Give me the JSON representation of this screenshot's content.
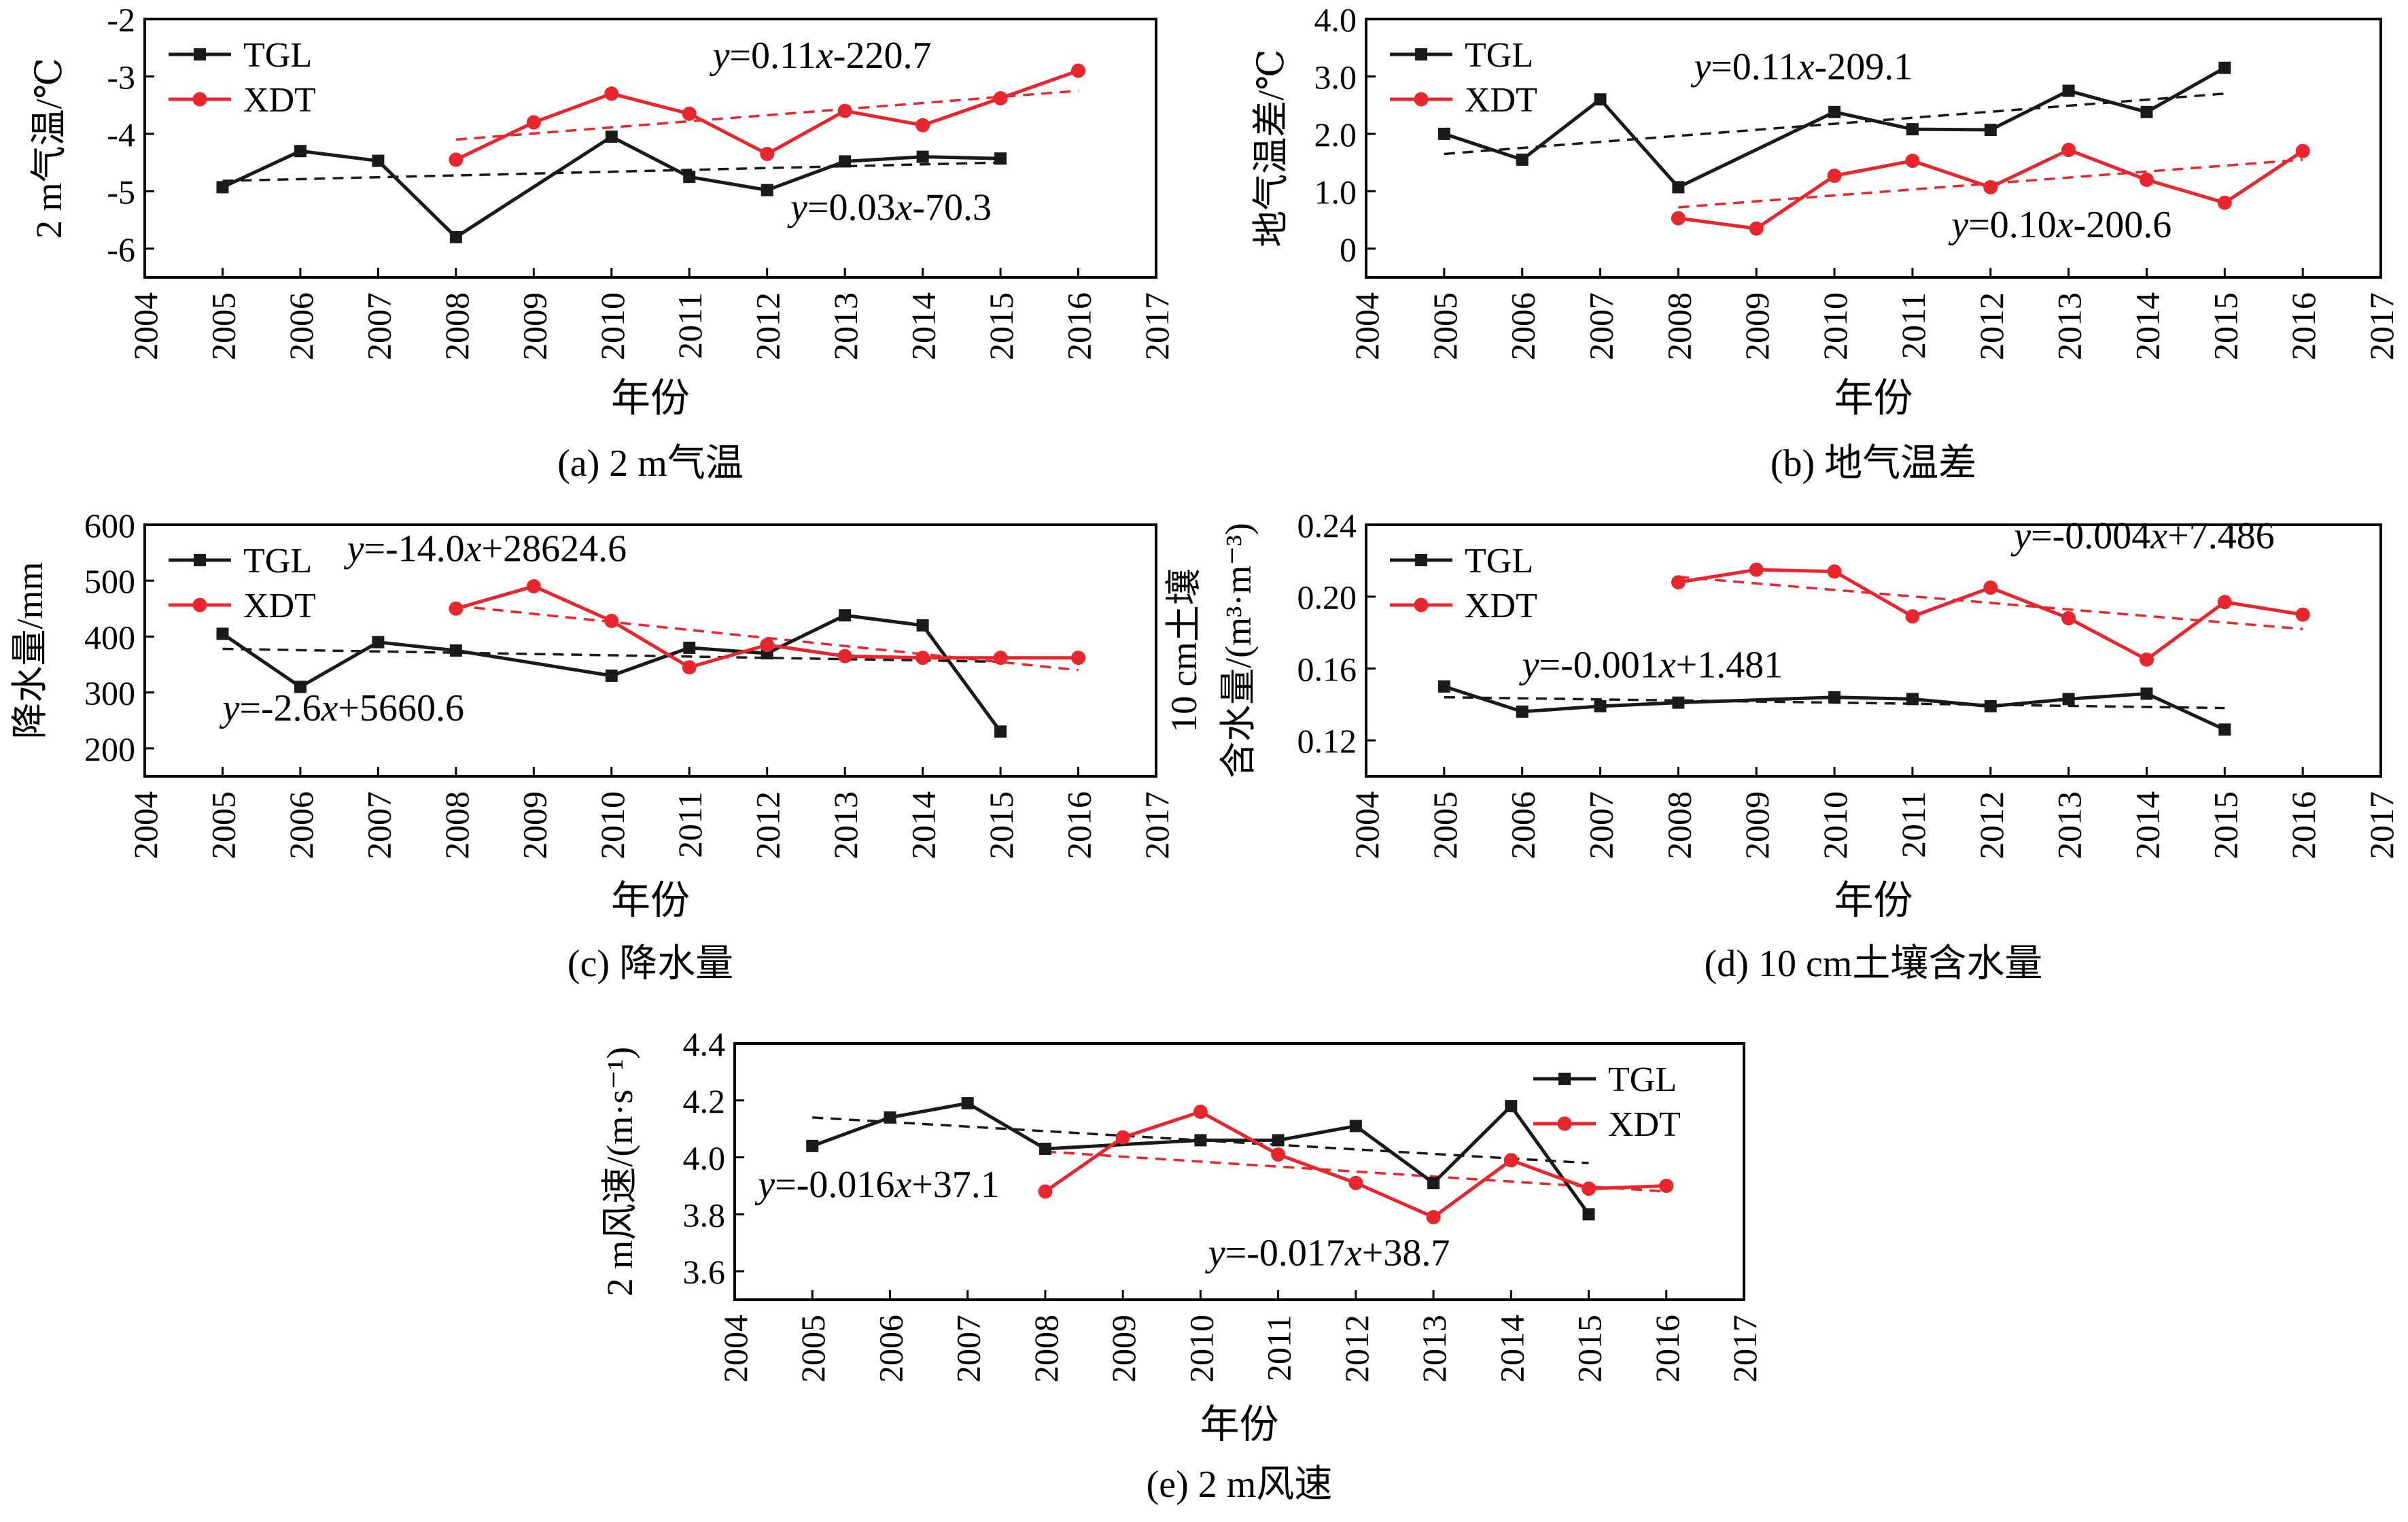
{
  "figure": {
    "x_axis_label": "年份",
    "colors": {
      "TGL": "#1a1a1a",
      "XDT": "#e8262e",
      "frame": "#000000"
    }
  },
  "chart_data": [
    {
      "id": "a",
      "type": "line",
      "caption": "(a) 2 m气温",
      "ylabel": "2 m气温/℃",
      "xlim": [
        2004,
        2017
      ],
      "ylim": [
        -6.5,
        -2
      ],
      "xticks": [
        2004,
        2005,
        2006,
        2007,
        2008,
        2009,
        2010,
        2011,
        2012,
        2013,
        2014,
        2015,
        2016,
        2017
      ],
      "yticks": [
        -6,
        -5,
        -4,
        -3,
        -2
      ],
      "ytick_labels": [
        "-6",
        "-5",
        "-4",
        "-3",
        "-2"
      ],
      "legend": "top-left",
      "series": [
        {
          "name": "TGL",
          "marker": "square",
          "x": [
            2005,
            2006,
            2007,
            2008,
            2010,
            2011,
            2012,
            2013,
            2014,
            2015
          ],
          "y": [
            -4.93,
            -4.3,
            -4.47,
            -5.8,
            -4.05,
            -4.75,
            -4.98,
            -4.48,
            -4.4,
            -4.43
          ]
        },
        {
          "name": "XDT",
          "marker": "circle",
          "x": [
            2008,
            2009,
            2010,
            2011,
            2012,
            2013,
            2014,
            2015,
            2016
          ],
          "y": [
            -4.45,
            -3.8,
            -3.3,
            -3.65,
            -4.35,
            -3.6,
            -3.85,
            -3.38,
            -2.9
          ]
        }
      ],
      "trendlines": [
        {
          "series": "TGL",
          "x": [
            2005,
            2015
          ],
          "y": [
            -4.82,
            -4.5
          ]
        },
        {
          "series": "XDT",
          "x": [
            2008,
            2016
          ],
          "y": [
            -4.1,
            -3.25
          ]
        }
      ],
      "annotations": [
        {
          "series": "XDT",
          "text": "y=0.11x-220.7",
          "x": 2011.3,
          "y": -2.85
        },
        {
          "series": "TGL",
          "text": "y=0.03x-70.3",
          "x": 2012.3,
          "y": -5.5
        }
      ]
    },
    {
      "id": "b",
      "type": "line",
      "caption": "(b) 地气温差",
      "ylabel": "地气温差/℃",
      "xlim": [
        2004,
        2017
      ],
      "ylim": [
        -0.5,
        4
      ],
      "xticks": [
        2004,
        2005,
        2006,
        2007,
        2008,
        2009,
        2010,
        2011,
        2012,
        2013,
        2014,
        2015,
        2016,
        2017
      ],
      "yticks": [
        0,
        1,
        2,
        3,
        4
      ],
      "ytick_labels": [
        "0",
        "1.0",
        "2.0",
        "3.0",
        "4.0"
      ],
      "legend": "top-left",
      "series": [
        {
          "name": "TGL",
          "marker": "square",
          "x": [
            2005,
            2006,
            2007,
            2008,
            2010,
            2011,
            2012,
            2013,
            2014,
            2015
          ],
          "y": [
            2.0,
            1.55,
            2.6,
            1.07,
            2.38,
            2.08,
            2.07,
            2.75,
            2.38,
            3.15
          ]
        },
        {
          "name": "XDT",
          "marker": "circle",
          "x": [
            2008,
            2009,
            2010,
            2011,
            2012,
            2013,
            2014,
            2015,
            2016
          ],
          "y": [
            0.53,
            0.35,
            1.27,
            1.53,
            1.07,
            1.72,
            1.2,
            0.8,
            1.7
          ]
        }
      ],
      "trendlines": [
        {
          "series": "TGL",
          "x": [
            2005,
            2015
          ],
          "y": [
            1.65,
            2.7
          ]
        },
        {
          "series": "XDT",
          "x": [
            2008,
            2016
          ],
          "y": [
            0.72,
            1.55
          ]
        }
      ],
      "annotations": [
        {
          "series": "TGL",
          "text": "y=0.11x-209.1",
          "x": 2008.2,
          "y": 2.95
        },
        {
          "series": "XDT",
          "text": "y=0.10x-200.6",
          "x": 2011.5,
          "y": 0.2
        }
      ]
    },
    {
      "id": "c",
      "type": "line",
      "caption": "(c) 降水量",
      "ylabel": "降水量/mm",
      "xlim": [
        2004,
        2017
      ],
      "ylim": [
        150,
        600
      ],
      "xticks": [
        2004,
        2005,
        2006,
        2007,
        2008,
        2009,
        2010,
        2011,
        2012,
        2013,
        2014,
        2015,
        2016,
        2017
      ],
      "yticks": [
        200,
        300,
        400,
        500,
        600
      ],
      "ytick_labels": [
        "200",
        "300",
        "400",
        "500",
        "600"
      ],
      "legend": "top-left",
      "series": [
        {
          "name": "TGL",
          "marker": "square",
          "x": [
            2005,
            2006,
            2007,
            2008,
            2010,
            2011,
            2012,
            2013,
            2014,
            2015
          ],
          "y": [
            405,
            310,
            390,
            375,
            330,
            380,
            370,
            438,
            420,
            230
          ]
        },
        {
          "name": "XDT",
          "marker": "circle",
          "x": [
            2008,
            2009,
            2010,
            2011,
            2012,
            2013,
            2014,
            2015,
            2016
          ],
          "y": [
            450,
            490,
            428,
            345,
            385,
            365,
            362,
            362,
            362
          ]
        }
      ],
      "trendlines": [
        {
          "series": "TGL",
          "x": [
            2005,
            2015
          ],
          "y": [
            378,
            355
          ]
        },
        {
          "series": "XDT",
          "x": [
            2008,
            2016
          ],
          "y": [
            455,
            340
          ]
        }
      ],
      "annotations": [
        {
          "series": "XDT",
          "text": "y=-14.0x+28624.6",
          "x": 2006.6,
          "y": 535
        },
        {
          "series": "TGL",
          "text": "y=-2.6x+5660.6",
          "x": 2005.0,
          "y": 250
        }
      ]
    },
    {
      "id": "d",
      "type": "line",
      "caption": "(d) 10 cm土壤含水量",
      "ylabel_lines": [
        "10 cm土壤",
        "含水量/(m³·m⁻³)"
      ],
      "xlim": [
        2004,
        2017
      ],
      "ylim": [
        0.1,
        0.24
      ],
      "xticks": [
        2004,
        2005,
        2006,
        2007,
        2008,
        2009,
        2010,
        2011,
        2012,
        2013,
        2014,
        2015,
        2016,
        2017
      ],
      "yticks": [
        0.12,
        0.16,
        0.2,
        0.24
      ],
      "ytick_labels": [
        "0.12",
        "0.16",
        "0.20",
        "0.24"
      ],
      "legend": "top-left",
      "series": [
        {
          "name": "TGL",
          "marker": "square",
          "x": [
            2005,
            2006,
            2007,
            2008,
            2010,
            2011,
            2012,
            2013,
            2014,
            2015
          ],
          "y": [
            0.15,
            0.136,
            0.139,
            0.141,
            0.144,
            0.143,
            0.139,
            0.143,
            0.146,
            0.126
          ]
        },
        {
          "name": "XDT",
          "marker": "circle",
          "x": [
            2008,
            2009,
            2010,
            2011,
            2012,
            2013,
            2014,
            2015,
            2016
          ],
          "y": [
            0.208,
            0.215,
            0.214,
            0.189,
            0.205,
            0.188,
            0.165,
            0.197,
            0.19
          ]
        }
      ],
      "trendlines": [
        {
          "series": "TGL",
          "x": [
            2005,
            2015
          ],
          "y": [
            0.144,
            0.138
          ]
        },
        {
          "series": "XDT",
          "x": [
            2008,
            2016
          ],
          "y": [
            0.211,
            0.182
          ]
        }
      ],
      "annotations": [
        {
          "series": "XDT",
          "text": "y=-0.004x+7.486",
          "x": 2012.3,
          "y": 0.227
        },
        {
          "series": "TGL",
          "text": "y=-0.001x+1.481",
          "x": 2006.0,
          "y": 0.155
        }
      ]
    },
    {
      "id": "e",
      "type": "line",
      "caption": "(e) 2 m风速",
      "ylabel": "2 m风速/(m·s⁻¹)",
      "xlim": [
        2004,
        2017
      ],
      "ylim": [
        3.5,
        4.4
      ],
      "xticks": [
        2004,
        2005,
        2006,
        2007,
        2008,
        2009,
        2010,
        2011,
        2012,
        2013,
        2014,
        2015,
        2016,
        2017
      ],
      "yticks": [
        3.6,
        3.8,
        4.0,
        4.2,
        4.4
      ],
      "ytick_labels": [
        "3.6",
        "3.8",
        "4.0",
        "4.2",
        "4.4"
      ],
      "legend": "top-right",
      "series": [
        {
          "name": "TGL",
          "marker": "square",
          "x": [
            2005,
            2006,
            2007,
            2008,
            2010,
            2011,
            2012,
            2013,
            2014,
            2015
          ],
          "y": [
            4.04,
            4.14,
            4.19,
            4.03,
            4.06,
            4.06,
            4.11,
            3.91,
            4.18,
            3.8
          ]
        },
        {
          "name": "XDT",
          "marker": "circle",
          "x": [
            2008,
            2009,
            2010,
            2011,
            2012,
            2013,
            2014,
            2015,
            2016
          ],
          "y": [
            3.88,
            4.07,
            4.16,
            4.01,
            3.91,
            3.79,
            3.99,
            3.89,
            3.9
          ]
        }
      ],
      "trendlines": [
        {
          "series": "TGL",
          "x": [
            2005,
            2015
          ],
          "y": [
            4.14,
            3.98
          ]
        },
        {
          "series": "XDT",
          "x": [
            2008,
            2016
          ],
          "y": [
            4.02,
            3.88
          ]
        }
      ],
      "annotations": [
        {
          "series": "TGL",
          "text": "y=-0.016x+37.1",
          "x": 2004.3,
          "y": 3.86
        },
        {
          "series": "XDT",
          "text": "y=-0.017x+38.7",
          "x": 2010.1,
          "y": 3.62
        }
      ]
    }
  ]
}
